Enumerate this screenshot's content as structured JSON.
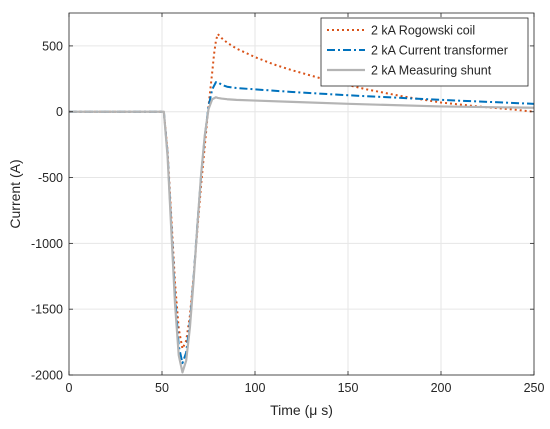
{
  "chart_data": {
    "type": "line",
    "title": "",
    "xlabel": "Time (μ s)",
    "ylabel": "Current (A)",
    "xlim": [
      0,
      250
    ],
    "ylim": [
      -2000,
      750
    ],
    "xticks": [
      0,
      50,
      100,
      150,
      200,
      250
    ],
    "yticks": [
      -2000,
      -1500,
      -1000,
      -500,
      0,
      500
    ],
    "grid": true,
    "legend_position": "top-right",
    "series": [
      {
        "name": "2 kA Rogowski coil",
        "color": "#D95319",
        "style": "dotted",
        "x": [
          0,
          50,
          51,
          53,
          55,
          57,
          59,
          61,
          63,
          65,
          67,
          69,
          71,
          73,
          75,
          77,
          78,
          79,
          80,
          82,
          85,
          90,
          100,
          110,
          120,
          140,
          160,
          180,
          200,
          220,
          240,
          250
        ],
        "y": [
          0,
          0,
          0,
          -300,
          -800,
          -1300,
          -1650,
          -1800,
          -1740,
          -1550,
          -1250,
          -900,
          -560,
          -260,
          40,
          300,
          440,
          540,
          590,
          560,
          525,
          480,
          415,
          360,
          315,
          235,
          170,
          115,
          70,
          40,
          15,
          0
        ]
      },
      {
        "name": "2 kA Current transformer",
        "color": "#0072BD",
        "style": "dashdot",
        "x": [
          0,
          50,
          51,
          53,
          55,
          57,
          59,
          61,
          63,
          65,
          67,
          69,
          71,
          73,
          75,
          77,
          79,
          80,
          82,
          85,
          90,
          100,
          120,
          150,
          200,
          250
        ],
        "y": [
          0,
          0,
          0,
          -320,
          -860,
          -1400,
          -1780,
          -1910,
          -1830,
          -1600,
          -1260,
          -860,
          -490,
          -190,
          40,
          170,
          225,
          225,
          205,
          190,
          180,
          170,
          150,
          125,
          90,
          60
        ]
      },
      {
        "name": "2 kA Measuring shunt",
        "color": "#B4B4B4",
        "style": "solid",
        "x": [
          0,
          50,
          51,
          53,
          55,
          57,
          59,
          61,
          63,
          65,
          67,
          69,
          71,
          73,
          75,
          77,
          79,
          80,
          82,
          85,
          90,
          100,
          120,
          150,
          200,
          250
        ],
        "y": [
          0,
          0,
          0,
          -340,
          -900,
          -1460,
          -1850,
          -1980,
          -1890,
          -1640,
          -1280,
          -870,
          -480,
          -180,
          20,
          95,
          110,
          105,
          100,
          95,
          90,
          85,
          75,
          60,
          40,
          30
        ]
      }
    ]
  }
}
